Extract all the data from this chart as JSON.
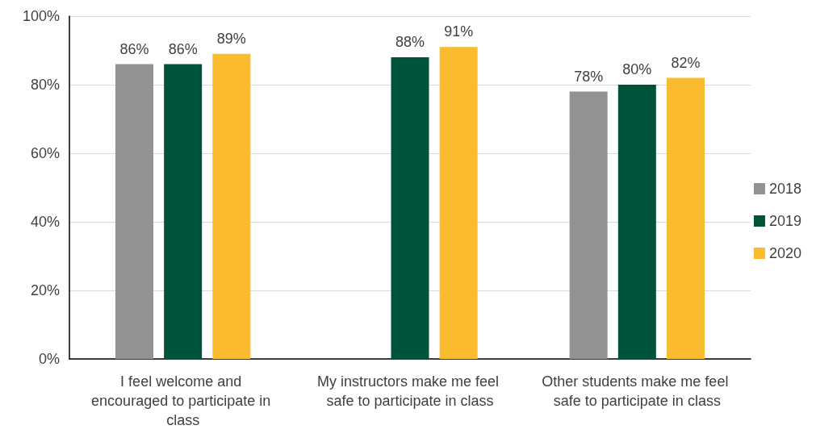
{
  "chart_data": {
    "type": "bar",
    "categories": [
      "I feel welcome and encouraged to participate in class",
      "My instructors make me feel safe to participate in class",
      "Other students make me feel safe to participate in class"
    ],
    "series": [
      {
        "name": "2018",
        "color": "#929292",
        "values": [
          86,
          null,
          78
        ],
        "value_labels": [
          "86%",
          null,
          "78%"
        ]
      },
      {
        "name": "2019",
        "color": "#00533b",
        "values": [
          86,
          88,
          80
        ],
        "value_labels": [
          "86%",
          "88%",
          "80%"
        ]
      },
      {
        "name": "2020",
        "color": "#fbbb2f",
        "values": [
          89,
          91,
          82
        ],
        "value_labels": [
          "89%",
          "91%",
          "82%"
        ]
      }
    ],
    "ylim": [
      0,
      100
    ],
    "yticks": [
      {
        "value": 0,
        "label": "0%"
      },
      {
        "value": 20,
        "label": "20%"
      },
      {
        "value": 40,
        "label": "40%"
      },
      {
        "value": 60,
        "label": "60%"
      },
      {
        "value": 80,
        "label": "80%"
      },
      {
        "value": 100,
        "label": "100%"
      }
    ],
    "grid": "y",
    "legend": "right"
  }
}
